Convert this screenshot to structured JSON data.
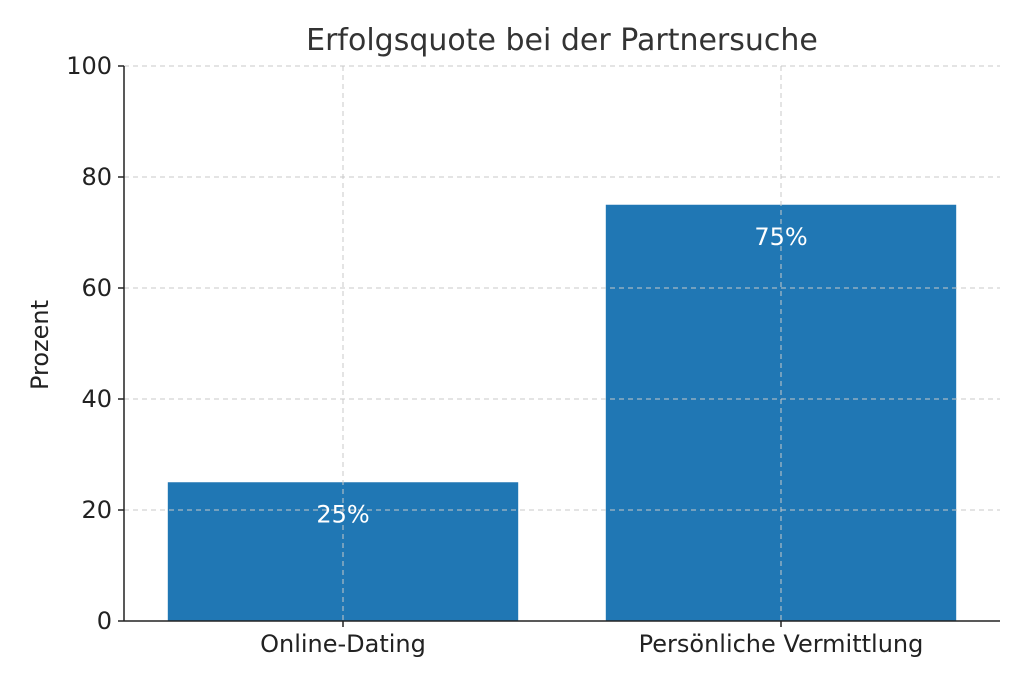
{
  "chart_data": {
    "type": "bar",
    "title": "Erfolgsquote bei der Partnersuche",
    "xlabel": "",
    "ylabel": "Prozent",
    "categories": [
      "Online-Dating",
      "Persönliche Vermittlung"
    ],
    "values": [
      25,
      75
    ],
    "data_labels": [
      "25%",
      "75%"
    ],
    "ylim": [
      0,
      100
    ],
    "yticks": [
      0,
      20,
      40,
      60,
      80,
      100
    ],
    "ytick_labels": [
      "0",
      "20",
      "40",
      "60",
      "80",
      "100"
    ],
    "grid": true,
    "bar_color": "#2077b4",
    "legend": "none"
  }
}
